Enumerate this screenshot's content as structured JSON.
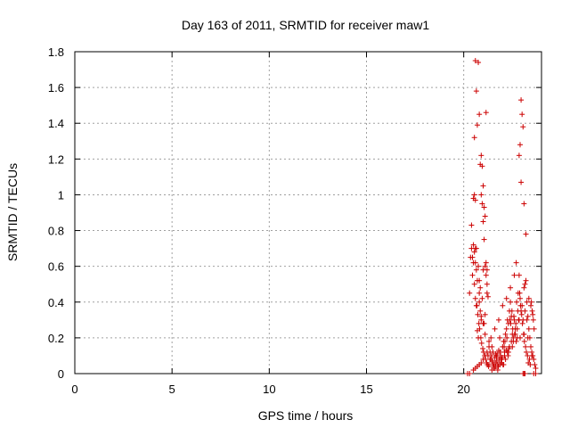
{
  "chart_data": {
    "type": "scatter",
    "title": "Day 163 of 2011, SRMTID for receiver maw1",
    "xlabel": "GPS time / hours",
    "ylabel": "SRMTID / TECUs",
    "xlim": [
      0,
      24
    ],
    "ylim": [
      0,
      1.8
    ],
    "xticks": [
      0,
      5,
      10,
      15,
      20
    ],
    "yticks": [
      0,
      0.2,
      0.4,
      0.6,
      0.8,
      1,
      1.2,
      1.4,
      1.6,
      1.8
    ],
    "xtick_labels": [
      "0",
      "5",
      "10",
      "15",
      "20"
    ],
    "ytick_labels": [
      "0",
      "0.2",
      "0.4",
      "0.6",
      "0.8",
      "1",
      "1.2",
      "1.4",
      "1.6",
      "1.8"
    ],
    "grid": true,
    "marker": "+",
    "color": "#cc0000",
    "series": [
      {
        "x": [
          20.2,
          20.3,
          20.35,
          20.4,
          20.4,
          20.45,
          20.5,
          20.5,
          20.55,
          20.55,
          20.6,
          20.6,
          20.65,
          20.65,
          20.7,
          20.7,
          20.75,
          20.75,
          20.8,
          20.8,
          20.85,
          20.85,
          20.9,
          20.9,
          20.95,
          20.95,
          21.0,
          21.0,
          21.05,
          21.05,
          21.1,
          21.1,
          21.15,
          21.15,
          21.2,
          21.2,
          21.25,
          21.3,
          21.35,
          21.4,
          21.45,
          21.5,
          21.55,
          21.6,
          21.65,
          21.7,
          21.75,
          21.8,
          21.85,
          21.9,
          21.95,
          22.0,
          22.05,
          22.1,
          22.15,
          22.2,
          22.25,
          22.3,
          22.35,
          22.4,
          22.45,
          22.5,
          22.55,
          22.6,
          22.65,
          22.7,
          22.75,
          22.8,
          22.85,
          22.9,
          22.95,
          23.0,
          23.05,
          23.1,
          23.15,
          23.2,
          23.25,
          23.3,
          23.35,
          23.4,
          23.45,
          23.5,
          23.55,
          23.6,
          23.65,
          23.7,
          20.55,
          20.6,
          20.65,
          20.75,
          20.8,
          20.85,
          20.9,
          20.95,
          21.0,
          21.05,
          21.1,
          21.15,
          21.2,
          21.25,
          20.45,
          20.5,
          20.55,
          20.6,
          20.65,
          20.7,
          20.8,
          20.9,
          21.0,
          21.1,
          21.3,
          21.5,
          21.7,
          21.9,
          22.1,
          22.3,
          22.5,
          22.7,
          22.9,
          23.1,
          23.3,
          23.5,
          22.95,
          23.0,
          23.05,
          22.9,
          22.85,
          22.95,
          23.1,
          23.2,
          22.6,
          22.4,
          22.2,
          22.0,
          21.8,
          21.6,
          21.4,
          21.3,
          21.2,
          21.1,
          21.0,
          20.9,
          20.8,
          20.7,
          20.6,
          20.5,
          22.05,
          22.15,
          22.25,
          22.35,
          22.45,
          22.55,
          22.65,
          22.75,
          22.85,
          23.15,
          23.25,
          23.35,
          23.45,
          23.55,
          21.45,
          21.55,
          21.65,
          21.75,
          21.85,
          21.95,
          21.35,
          21.42,
          21.48,
          21.52,
          21.58,
          21.62,
          21.68,
          21.72,
          21.78,
          21.82,
          21.88,
          21.92,
          21.98,
          22.02,
          22.08,
          22.12,
          22.18,
          22.22,
          22.28,
          22.32,
          20.6,
          20.68,
          20.72,
          20.78,
          20.82,
          20.88,
          20.92,
          20.98,
          21.02,
          21.08,
          21.12,
          21.18,
          21.22,
          21.28,
          22.38,
          22.42,
          22.48,
          22.52,
          22.58,
          22.62,
          22.68,
          22.72,
          22.78,
          22.82,
          22.88,
          22.92,
          22.98,
          23.02,
          23.08,
          23.12,
          23.18,
          23.22,
          23.28,
          23.32,
          23.38,
          23.42,
          23.48,
          23.52,
          23.58,
          23.62,
          20.3,
          23.05,
          23.1,
          23.15,
          23.6,
          23.7
        ],
        "y": [
          0.0,
          0.45,
          0.65,
          0.7,
          0.83,
          0.55,
          0.62,
          0.98,
          1.32,
          0.5,
          1.75,
          0.7,
          1.58,
          0.38,
          1.39,
          0.24,
          1.74,
          0.2,
          1.45,
          0.45,
          1.17,
          0.35,
          1.22,
          0.3,
          1.16,
          0.42,
          1.05,
          0.58,
          0.93,
          0.28,
          0.88,
          0.33,
          1.46,
          0.62,
          0.58,
          0.45,
          0.1,
          0.05,
          0.12,
          0.08,
          0.15,
          0.06,
          0.04,
          0.09,
          0.11,
          0.07,
          0.05,
          0.13,
          0.2,
          0.1,
          0.08,
          0.15,
          0.18,
          0.12,
          0.22,
          0.25,
          0.3,
          0.28,
          0.35,
          0.4,
          0.32,
          0.22,
          0.18,
          0.3,
          0.25,
          0.62,
          0.2,
          0.45,
          0.55,
          0.42,
          0.35,
          0.38,
          0.3,
          0.48,
          0.5,
          0.52,
          0.3,
          0.32,
          0.25,
          0.2,
          0.15,
          0.12,
          0.1,
          0.08,
          0.05,
          0.03,
          1.0,
          0.97,
          0.7,
          0.6,
          0.52,
          0.48,
          1.0,
          0.95,
          0.85,
          0.75,
          0.6,
          0.55,
          0.5,
          0.43,
          0.65,
          0.72,
          0.68,
          0.62,
          0.58,
          0.52,
          0.4,
          0.32,
          0.28,
          0.22,
          0.18,
          0.12,
          0.1,
          0.08,
          0.1,
          0.12,
          0.15,
          0.18,
          0.2,
          0.22,
          0.2,
          0.1,
          1.53,
          1.45,
          1.38,
          1.28,
          1.22,
          1.07,
          0.95,
          0.78,
          0.55,
          0.48,
          0.42,
          0.38,
          0.3,
          0.25,
          0.2,
          0.15,
          0.12,
          0.1,
          0.08,
          0.06,
          0.05,
          0.04,
          0.03,
          0.02,
          0.05,
          0.08,
          0.12,
          0.15,
          0.18,
          0.2,
          0.22,
          0.25,
          0.3,
          0.35,
          0.4,
          0.42,
          0.38,
          0.33,
          0.02,
          0.03,
          0.04,
          0.02,
          0.05,
          0.06,
          0.08,
          0.1,
          0.07,
          0.05,
          0.03,
          0.06,
          0.09,
          0.11,
          0.04,
          0.08,
          0.12,
          0.06,
          0.09,
          0.05,
          0.15,
          0.18,
          0.13,
          0.2,
          0.1,
          0.14,
          0.42,
          0.38,
          0.33,
          0.28,
          0.25,
          0.2,
          0.17,
          0.14,
          0.12,
          0.1,
          0.08,
          0.06,
          0.05,
          0.04,
          0.3,
          0.28,
          0.35,
          0.25,
          0.32,
          0.22,
          0.28,
          0.4,
          0.35,
          0.3,
          0.45,
          0.38,
          0.33,
          0.28,
          0.22,
          0.18,
          0.15,
          0.12,
          0.1,
          0.06,
          0.08,
          0.05,
          0.4,
          0.35,
          0.3,
          0.25,
          0.0,
          0.0,
          0.0,
          0.0,
          0.0,
          0.0
        ]
      }
    ]
  }
}
